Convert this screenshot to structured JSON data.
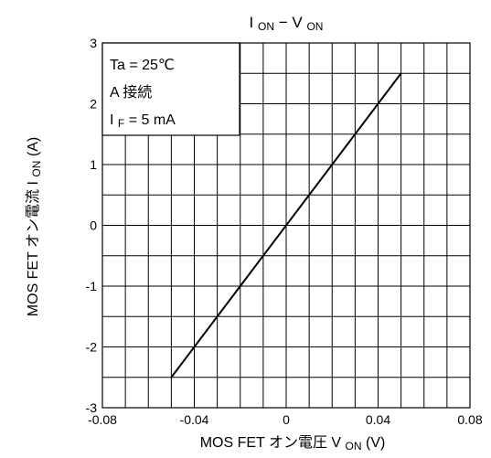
{
  "chart_data": {
    "type": "line",
    "title": {
      "main": "I",
      "sub1": "ON",
      "dash": " − ",
      "main2": "V",
      "sub2": "ON"
    },
    "xlabel": {
      "text": "MOS FET オン電圧  V",
      "sub": "ON",
      "unit": " (V)"
    },
    "ylabel": {
      "text": "MOS FET オン電流    I",
      "sub": "ON",
      "unit": " (A)"
    },
    "xlim": [
      -0.08,
      0.08
    ],
    "ylim": [
      -3,
      3
    ],
    "xticks": [
      "-0.08",
      "-0.04",
      "0",
      "0.04",
      "0.08"
    ],
    "xtick_values": [
      -0.08,
      -0.04,
      0,
      0.04,
      0.08
    ],
    "yticks": [
      "3",
      "2",
      "1",
      "0",
      "-1",
      "-2",
      "-3"
    ],
    "ytick_values": [
      3,
      2,
      1,
      0,
      -1,
      -2,
      -3
    ],
    "grid": true,
    "series": [
      {
        "x": [
          -0.05,
          0.05
        ],
        "y": [
          -2.5,
          2.5
        ]
      }
    ],
    "conditions": {
      "line1": "Ta = 25℃",
      "line2": "A 接続",
      "line3_main": "I",
      "line3_sub": "F",
      "line3_rest": " = 5 mA"
    }
  }
}
